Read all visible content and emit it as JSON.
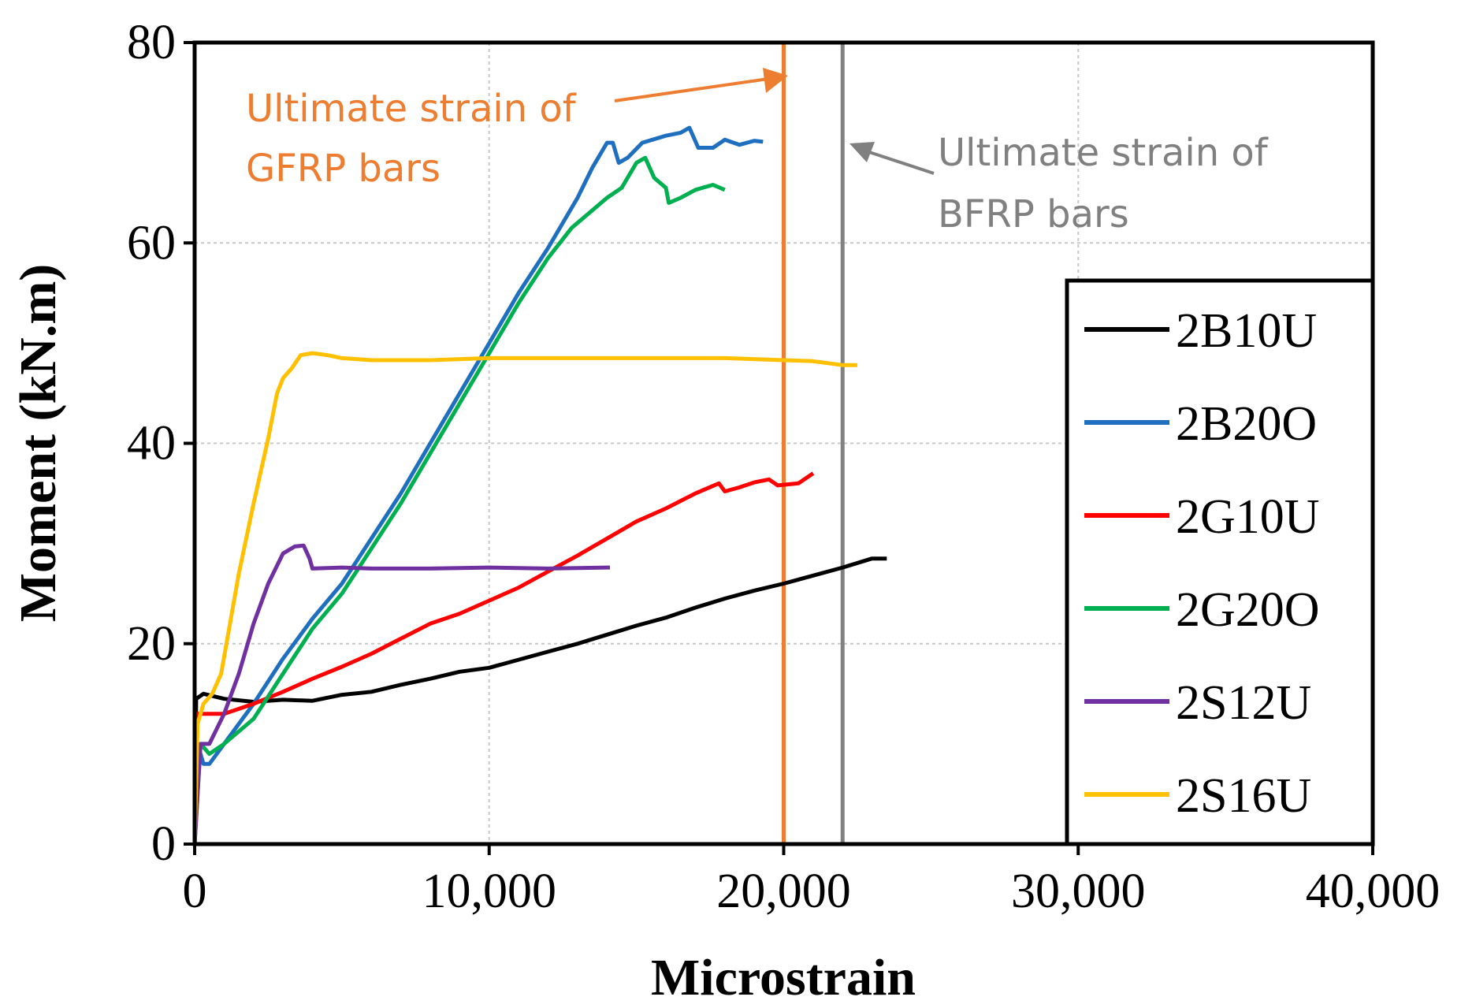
{
  "chart_data": {
    "type": "line",
    "title": "",
    "xlabel": "Microstrain",
    "ylabel": "Moment (kN.m)",
    "xlim": [
      0,
      40000
    ],
    "ylim": [
      0,
      80
    ],
    "grid": true,
    "legend_position": "right",
    "x_ticks": [
      0,
      10000,
      20000,
      30000,
      40000
    ],
    "x_tick_labels": [
      "0",
      "10,000",
      "20,000",
      "30,000",
      "40,000"
    ],
    "y_ticks": [
      0,
      20,
      40,
      60,
      80
    ],
    "y_tick_labels": [
      "0",
      "20",
      "40",
      "60",
      "80"
    ],
    "series": [
      {
        "name": "2B10U",
        "color": "#000000",
        "points": [
          [
            0,
            0
          ],
          [
            50,
            14.5
          ],
          [
            300,
            15
          ],
          [
            1000,
            14.5
          ],
          [
            2000,
            14.2
          ],
          [
            3000,
            14.4
          ],
          [
            4000,
            14.3
          ],
          [
            5000,
            14.9
          ],
          [
            6000,
            15.2
          ],
          [
            7000,
            15.9
          ],
          [
            8000,
            16.5
          ],
          [
            9000,
            17.2
          ],
          [
            10000,
            17.6
          ],
          [
            11000,
            18.4
          ],
          [
            12000,
            19.2
          ],
          [
            13000,
            20
          ],
          [
            14000,
            20.9
          ],
          [
            15000,
            21.8
          ],
          [
            16000,
            22.6
          ],
          [
            17000,
            23.6
          ],
          [
            18000,
            24.5
          ],
          [
            19000,
            25.3
          ],
          [
            20000,
            26
          ],
          [
            21000,
            26.8
          ],
          [
            22000,
            27.6
          ],
          [
            23000,
            28.5
          ],
          [
            23500,
            28.5
          ]
        ]
      },
      {
        "name": "2B20O",
        "color": "#1f6fc0",
        "points": [
          [
            0,
            0
          ],
          [
            100,
            10
          ],
          [
            300,
            8
          ],
          [
            500,
            8
          ],
          [
            1000,
            10
          ],
          [
            2000,
            14
          ],
          [
            3000,
            18.5
          ],
          [
            4000,
            22.5
          ],
          [
            5000,
            26
          ],
          [
            6000,
            30.5
          ],
          [
            7000,
            35
          ],
          [
            8000,
            40
          ],
          [
            9000,
            45
          ],
          [
            10000,
            50
          ],
          [
            11000,
            55
          ],
          [
            12000,
            59.5
          ],
          [
            13000,
            64.5
          ],
          [
            13500,
            67.5
          ],
          [
            14000,
            70
          ],
          [
            14200,
            70
          ],
          [
            14400,
            68
          ],
          [
            14700,
            68.5
          ],
          [
            15200,
            70
          ],
          [
            16000,
            70.7
          ],
          [
            16500,
            71
          ],
          [
            16800,
            71.5
          ],
          [
            17100,
            69.5
          ],
          [
            17600,
            69.5
          ],
          [
            18000,
            70.3
          ],
          [
            18500,
            69.8
          ],
          [
            19000,
            70.2
          ],
          [
            19300,
            70.1
          ]
        ]
      },
      {
        "name": "2G10U",
        "color": "#ff0000",
        "points": [
          [
            0,
            0
          ],
          [
            100,
            13
          ],
          [
            1000,
            13
          ],
          [
            2000,
            14
          ],
          [
            3000,
            15.2
          ],
          [
            4000,
            16.5
          ],
          [
            5000,
            17.7
          ],
          [
            6000,
            19
          ],
          [
            7000,
            20.5
          ],
          [
            8000,
            22
          ],
          [
            9000,
            23
          ],
          [
            10000,
            24.3
          ],
          [
            11000,
            25.6
          ],
          [
            12000,
            27.2
          ],
          [
            13000,
            28.8
          ],
          [
            14000,
            30.5
          ],
          [
            15000,
            32.2
          ],
          [
            16000,
            33.5
          ],
          [
            17000,
            35
          ],
          [
            17800,
            36
          ],
          [
            18000,
            35.2
          ],
          [
            18500,
            35.6
          ],
          [
            19000,
            36.1
          ],
          [
            19500,
            36.4
          ],
          [
            19800,
            35.8
          ],
          [
            20500,
            36
          ],
          [
            21000,
            37
          ]
        ]
      },
      {
        "name": "2G20O",
        "color": "#00b050",
        "points": [
          [
            0,
            0
          ],
          [
            200,
            10
          ],
          [
            500,
            9
          ],
          [
            1000,
            10
          ],
          [
            2000,
            12.5
          ],
          [
            3000,
            17
          ],
          [
            4000,
            21.5
          ],
          [
            5000,
            25
          ],
          [
            6000,
            29.5
          ],
          [
            7000,
            34
          ],
          [
            8000,
            39
          ],
          [
            9000,
            44
          ],
          [
            10000,
            49
          ],
          [
            11000,
            54
          ],
          [
            12000,
            58.5
          ],
          [
            12800,
            61.5
          ],
          [
            14000,
            64.5
          ],
          [
            14500,
            65.5
          ],
          [
            15000,
            68
          ],
          [
            15300,
            68.5
          ],
          [
            15600,
            66.5
          ],
          [
            16000,
            65.5
          ],
          [
            16100,
            64
          ],
          [
            16500,
            64.5
          ],
          [
            17000,
            65.3
          ],
          [
            17600,
            65.8
          ],
          [
            18000,
            65.3
          ]
        ]
      },
      {
        "name": "2S12U",
        "color": "#7030a0",
        "points": [
          [
            0,
            0
          ],
          [
            200,
            10
          ],
          [
            500,
            10
          ],
          [
            1000,
            13
          ],
          [
            1500,
            17
          ],
          [
            2000,
            22
          ],
          [
            2500,
            26
          ],
          [
            3000,
            29
          ],
          [
            3400,
            29.7
          ],
          [
            3700,
            29.8
          ],
          [
            3900,
            28.5
          ],
          [
            4000,
            27.5
          ],
          [
            5000,
            27.6
          ],
          [
            6000,
            27.5
          ],
          [
            8000,
            27.5
          ],
          [
            10000,
            27.6
          ],
          [
            12000,
            27.5
          ],
          [
            14000,
            27.6
          ],
          [
            14100,
            27.6
          ]
        ]
      },
      {
        "name": "2S16U",
        "color": "#ffc000",
        "points": [
          [
            0,
            0
          ],
          [
            100,
            12
          ],
          [
            300,
            14
          ],
          [
            600,
            15
          ],
          [
            900,
            17
          ],
          [
            1500,
            27
          ],
          [
            2000,
            34
          ],
          [
            2500,
            40.5
          ],
          [
            2800,
            45
          ],
          [
            3000,
            46.5
          ],
          [
            3300,
            47.5
          ],
          [
            3600,
            48.8
          ],
          [
            4000,
            49
          ],
          [
            4500,
            48.8
          ],
          [
            5000,
            48.5
          ],
          [
            6000,
            48.3
          ],
          [
            8000,
            48.3
          ],
          [
            10000,
            48.5
          ],
          [
            12000,
            48.5
          ],
          [
            14000,
            48.5
          ],
          [
            16000,
            48.5
          ],
          [
            18000,
            48.5
          ],
          [
            20000,
            48.3
          ],
          [
            21000,
            48.2
          ],
          [
            22000,
            47.8
          ],
          [
            22500,
            47.8
          ]
        ]
      }
    ],
    "vertical_lines": [
      {
        "x": 20000,
        "color": "#ed7d31",
        "label": "Ultimate strain of GFRP bars"
      },
      {
        "x": 22000,
        "color": "#808080",
        "label": "Ultimate strain of BFRP bars"
      }
    ],
    "annotations": [
      {
        "lines": [
          "Ultimate strain of",
          "GFRP bars"
        ],
        "color": "#ed7d31"
      },
      {
        "lines": [
          "Ultimate strain of",
          "BFRP bars"
        ],
        "color": "#808080"
      }
    ]
  }
}
